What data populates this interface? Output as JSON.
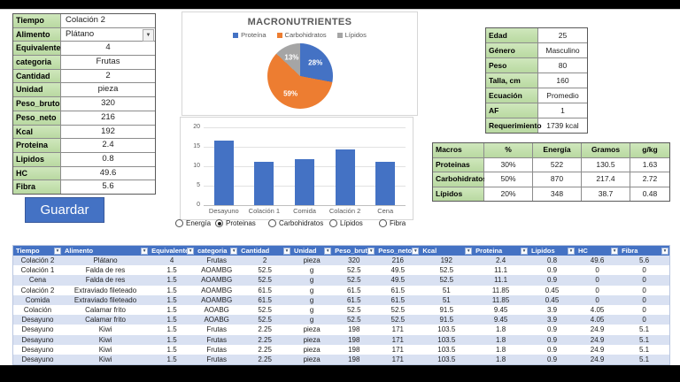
{
  "form": {
    "rows": [
      {
        "label": "Tiempo",
        "value": "Colación 2",
        "align": "left"
      },
      {
        "label": "Alimento",
        "value": "Plátano",
        "align": "left",
        "dropdown": true
      },
      {
        "label": "Equivalente",
        "value": "4"
      },
      {
        "label": "categoria",
        "value": "Frutas"
      },
      {
        "label": "Cantidad",
        "value": "2"
      },
      {
        "label": "Unidad",
        "value": "pieza"
      },
      {
        "label": "Peso_bruto",
        "value": "320"
      },
      {
        "label": "Peso_neto",
        "value": "216"
      },
      {
        "label": "Kcal",
        "value": "192"
      },
      {
        "label": "Proteina",
        "value": "2.4"
      },
      {
        "label": "Lipidos",
        "value": "0.8"
      },
      {
        "label": "HC",
        "value": "49.6"
      },
      {
        "label": "Fibra",
        "value": "5.6"
      }
    ],
    "save_label": "Guardar"
  },
  "controls": {
    "metric_options": [
      "Energía",
      "Proteinas",
      "Carbohidratos",
      "Lípidos",
      "Fibra"
    ],
    "selected_metric": "Proteinas"
  },
  "profile": {
    "rows": [
      {
        "label": "Edad",
        "value": "25"
      },
      {
        "label": "Género",
        "value": "Masculino"
      },
      {
        "label": "Peso",
        "value": "80"
      },
      {
        "label": "Talla, cm",
        "value": "160"
      },
      {
        "label": "Ecuación",
        "value": "Promedio"
      },
      {
        "label": "AF",
        "value": "1"
      },
      {
        "label": "Requerimiento",
        "value": "1739 kcal"
      }
    ]
  },
  "macros": {
    "headers": [
      "Macros",
      "%",
      "Energía",
      "Gramos",
      "g/kg"
    ],
    "rows": [
      {
        "label": "Proteinas",
        "values": [
          "30%",
          "522",
          "130.5",
          "1.63"
        ]
      },
      {
        "label": "Carbohidratos",
        "values": [
          "50%",
          "870",
          "217.4",
          "2.72"
        ]
      },
      {
        "label": "Lípidos",
        "values": [
          "20%",
          "348",
          "38.7",
          "0.48"
        ]
      }
    ]
  },
  "table": {
    "headers": [
      "Tiempo",
      "Alimento",
      "Equivalente",
      "categoria",
      "Cantidad",
      "Unidad",
      "Peso_bruto",
      "Peso_neto",
      "Kcal",
      "Proteina",
      "Lipidos",
      "HC",
      "Fibra"
    ],
    "rows": [
      [
        "Colación 2",
        "Plátano",
        "4",
        "Frutas",
        "2",
        "pieza",
        "320",
        "216",
        "192",
        "2.4",
        "0.8",
        "49.6",
        "5.6"
      ],
      [
        "Colación 1",
        "Falda de res",
        "1.5",
        "AOAMBG",
        "52.5",
        "g",
        "52.5",
        "49.5",
        "52.5",
        "11.1",
        "0.9",
        "0",
        "0"
      ],
      [
        "Cena",
        "Falda de res",
        "1.5",
        "AOAMBG",
        "52.5",
        "g",
        "52.5",
        "49.5",
        "52.5",
        "11.1",
        "0.9",
        "0",
        "0"
      ],
      [
        "Colación 2",
        "Extraviado fileteado",
        "1.5",
        "AOAMBG",
        "61.5",
        "g",
        "61.5",
        "61.5",
        "51",
        "11.85",
        "0.45",
        "0",
        "0"
      ],
      [
        "Comida",
        "Extraviado fileteado",
        "1.5",
        "AOAMBG",
        "61.5",
        "g",
        "61.5",
        "61.5",
        "51",
        "11.85",
        "0.45",
        "0",
        "0"
      ],
      [
        "Colación",
        "Calamar frito",
        "1.5",
        "AOABG",
        "52.5",
        "g",
        "52.5",
        "52.5",
        "91.5",
        "9.45",
        "3.9",
        "4.05",
        "0"
      ],
      [
        "Desayuno",
        "Calamar frito",
        "1.5",
        "AOABG",
        "52.5",
        "g",
        "52.5",
        "52.5",
        "91.5",
        "9.45",
        "3.9",
        "4.05",
        "0"
      ],
      [
        "Desayuno",
        "Kiwi",
        "1.5",
        "Frutas",
        "2.25",
        "pieza",
        "198",
        "171",
        "103.5",
        "1.8",
        "0.9",
        "24.9",
        "5.1"
      ],
      [
        "Desayuno",
        "Kiwi",
        "1.5",
        "Frutas",
        "2.25",
        "pieza",
        "198",
        "171",
        "103.5",
        "1.8",
        "0.9",
        "24.9",
        "5.1"
      ],
      [
        "Desayuno",
        "Kiwi",
        "1.5",
        "Frutas",
        "2.25",
        "pieza",
        "198",
        "171",
        "103.5",
        "1.8",
        "0.9",
        "24.9",
        "5.1"
      ],
      [
        "Desayuno",
        "Kiwi",
        "1.5",
        "Frutas",
        "2.25",
        "pieza",
        "198",
        "171",
        "103.5",
        "1.8",
        "0.9",
        "24.9",
        "5.1"
      ]
    ]
  },
  "colors": {
    "accent_blue": "#4472C4",
    "orange": "#ED7D31",
    "gray": "#A5A5A5",
    "band_row": "#D9E1F2",
    "green_cell": "#C3DFAD"
  },
  "chart_data": [
    {
      "type": "pie",
      "title": "MACRONUTRIENTES",
      "labels": [
        "Proteína",
        "Carbohidratos",
        "Lípidos"
      ],
      "values": [
        28,
        59,
        13
      ],
      "value_labels": [
        "28%",
        "59%",
        "13%"
      ],
      "colors": [
        "#4472C4",
        "#ED7D31",
        "#A5A5A5"
      ],
      "legend_position": "top"
    },
    {
      "type": "bar",
      "title": "",
      "categories": [
        "Desayuno",
        "Colación 1",
        "Comida",
        "Colación 2",
        "Cena"
      ],
      "values": [
        16.65,
        11.1,
        11.85,
        14.25,
        11.1
      ],
      "ylabel": "",
      "ylim": [
        0,
        20
      ],
      "yticks": [
        0,
        5,
        10,
        15,
        20
      ],
      "bar_color": "#4472C4",
      "grid": true,
      "legend_position": "none"
    }
  ]
}
